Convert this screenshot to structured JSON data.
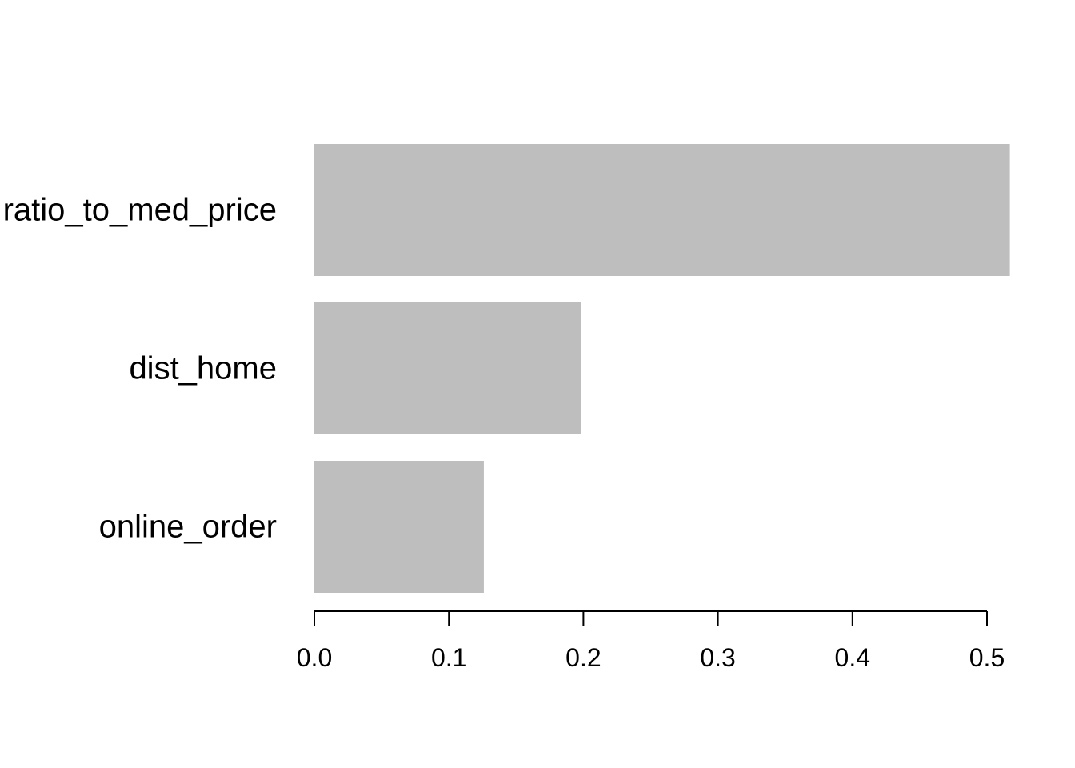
{
  "chart_data": {
    "type": "bar",
    "orientation": "horizontal",
    "title": "",
    "xlabel": "",
    "ylabel": "",
    "categories": [
      "ratio_to_med_price",
      "dist_home",
      "online_order"
    ],
    "values": [
      0.517,
      0.198,
      0.126
    ],
    "xlim": [
      0,
      0.5
    ],
    "x_ticks": [
      0.0,
      0.1,
      0.2,
      0.3,
      0.4,
      0.5
    ],
    "x_tick_labels": [
      "0.0",
      "0.1",
      "0.2",
      "0.3",
      "0.4",
      "0.5"
    ],
    "grid": false,
    "legend": "none",
    "colors": {
      "bar": "#bebebe",
      "axis": "#000000",
      "text": "#000000",
      "background": "#ffffff"
    }
  }
}
